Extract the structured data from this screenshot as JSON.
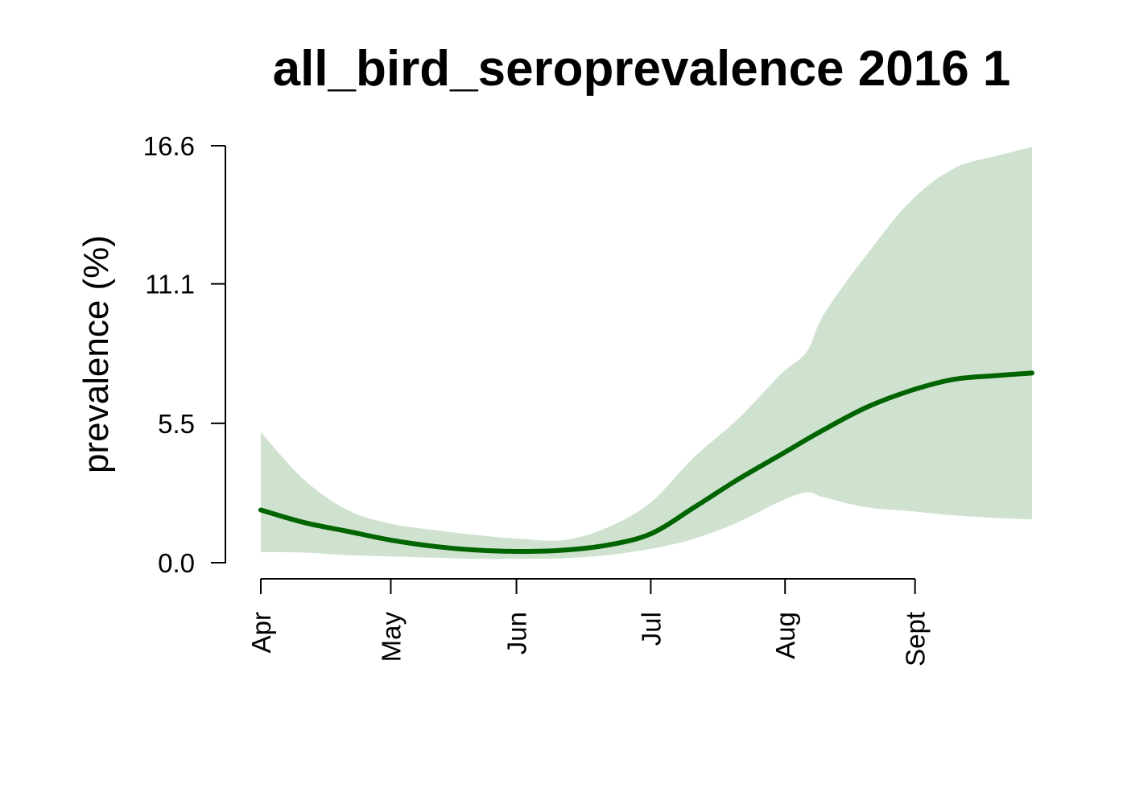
{
  "chart_data": {
    "type": "area",
    "title": "all_bird_seroprevalence 2016 1",
    "xlabel": "",
    "ylabel": "prevalence (%)",
    "ylim": [
      0,
      16.6
    ],
    "y_ticks": [
      "0.0",
      "5.5",
      "11.1",
      "16.6"
    ],
    "y_tick_values": [
      0,
      5.55,
      11.1,
      16.6
    ],
    "x_ticks": [
      {
        "label": "Apr",
        "date": "2016-04-01"
      },
      {
        "label": "May",
        "date": "2016-05-01"
      },
      {
        "label": "Jun",
        "date": "2016-05-30"
      },
      {
        "label": "Jul",
        "date": "2016-06-30"
      },
      {
        "label": "Aug",
        "date": "2016-07-31"
      },
      {
        "label": "Sept",
        "date": "2016-08-30"
      }
    ],
    "xlim": [
      "2016-04-01",
      "2016-09-26"
    ],
    "grid": false,
    "colors": {
      "line": "#006400",
      "band": "#cfe2cf"
    },
    "series": [
      {
        "kind": "line",
        "x": [
          "2016-04-01",
          "2016-04-11",
          "2016-04-21",
          "2016-05-01",
          "2016-05-11",
          "2016-05-21",
          "2016-05-31",
          "2016-06-10",
          "2016-06-20",
          "2016-06-30",
          "2016-07-10",
          "2016-07-20",
          "2016-07-30",
          "2016-08-09",
          "2016-08-19",
          "2016-08-29",
          "2016-09-08",
          "2016-09-18",
          "2016-09-26"
        ],
        "values": [
          2.1,
          1.6,
          1.25,
          0.9,
          0.65,
          0.5,
          0.45,
          0.5,
          0.7,
          1.15,
          2.2,
          3.3,
          4.3,
          5.3,
          6.2,
          6.85,
          7.3,
          7.45,
          7.55
        ]
      },
      {
        "kind": "band",
        "x": [
          "2016-04-01",
          "2016-04-11",
          "2016-04-21",
          "2016-05-01",
          "2016-05-11",
          "2016-05-21",
          "2016-05-31",
          "2016-06-10",
          "2016-06-20",
          "2016-06-30",
          "2016-07-10",
          "2016-07-20",
          "2016-07-30",
          "2016-08-05",
          "2016-08-09",
          "2016-08-19",
          "2016-08-29",
          "2016-09-08",
          "2016-09-18",
          "2016-09-26"
        ],
        "lower": [
          0.42,
          0.4,
          0.3,
          0.25,
          0.2,
          0.15,
          0.15,
          0.18,
          0.3,
          0.55,
          0.95,
          1.6,
          2.45,
          2.8,
          2.6,
          2.2,
          2.05,
          1.88,
          1.78,
          1.72
        ],
        "upper": [
          5.2,
          3.3,
          2.1,
          1.55,
          1.3,
          1.1,
          0.95,
          0.9,
          1.4,
          2.4,
          4.2,
          5.7,
          7.5,
          8.4,
          9.9,
          12.3,
          14.4,
          15.7,
          16.2,
          16.55
        ]
      }
    ]
  }
}
